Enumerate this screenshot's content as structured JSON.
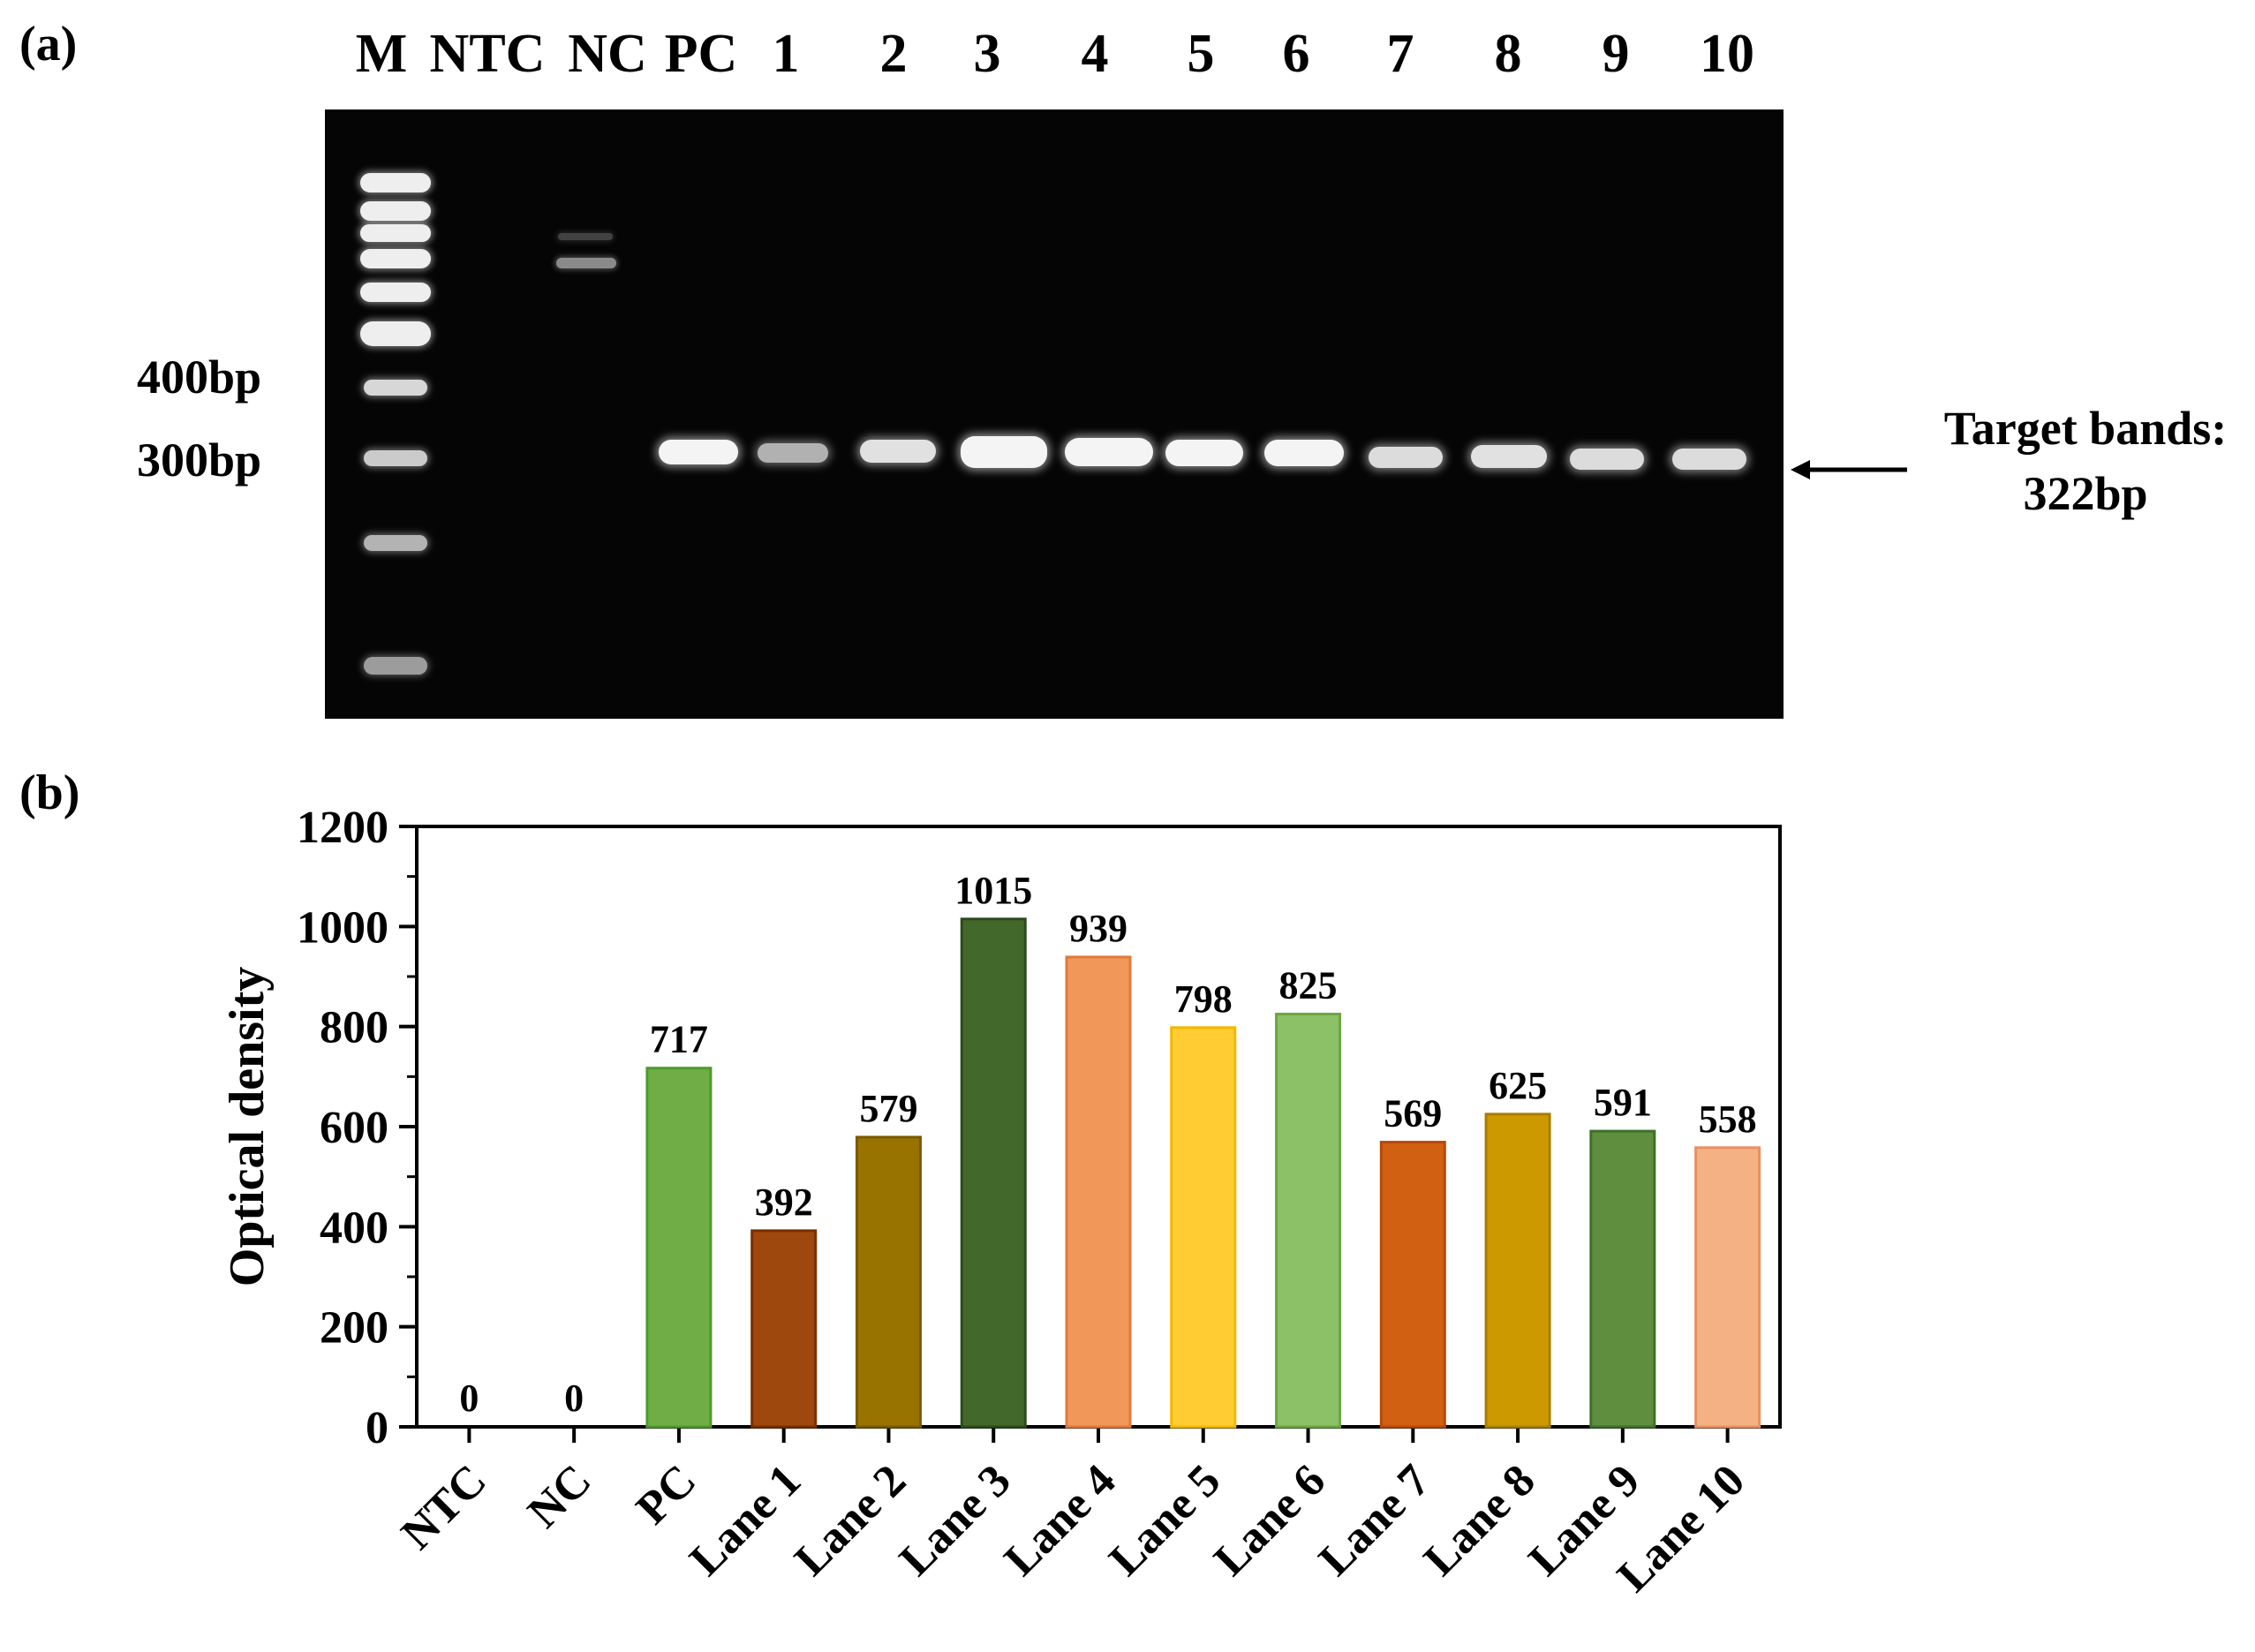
{
  "panel_a": {
    "label": "(a)",
    "lane_labels": [
      "M",
      "NTC",
      "NC",
      "PC",
      "1",
      "2",
      "3",
      "4",
      "5",
      "6",
      "7",
      "8",
      "9",
      "10"
    ],
    "size_markers": [
      "400bp",
      "300bp"
    ],
    "target_label_line1": "Target bands:",
    "target_label_line2": "322bp"
  },
  "panel_b": {
    "label": "(b)"
  },
  "chart_data": {
    "type": "bar",
    "categories": [
      "NTC",
      "NC",
      "PC",
      "Lane 1",
      "Lane 2",
      "Lane 3",
      "Lane 4",
      "Lane 5",
      "Lane 6",
      "Lane 7",
      "Lane 8",
      "Lane 9",
      "Lane 10"
    ],
    "values": [
      0,
      0,
      717,
      392,
      579,
      1015,
      939,
      798,
      825,
      569,
      625,
      591,
      558
    ],
    "value_labels": [
      "0",
      "0",
      "717",
      "392",
      "579",
      "1015",
      "939",
      "798",
      "825",
      "569",
      "625",
      "591",
      "558"
    ],
    "bar_colors": [
      "#ffffff",
      "#ffffff",
      "#70ad47",
      "#9e480e",
      "#997300",
      "#43682b",
      "#f1975a",
      "#ffcd33",
      "#8cc168",
      "#d26012",
      "#cc9a00",
      "#5e8e3e",
      "#f4b183"
    ],
    "bar_edge_colors": [
      "#ffffff",
      "#ffffff",
      "#4e9a2c",
      "#7a2e00",
      "#7a5a00",
      "#2d4a1c",
      "#e07a3a",
      "#f2b800",
      "#6aa840",
      "#b8480a",
      "#a87e00",
      "#3e7028",
      "#e89060"
    ],
    "title": "",
    "xlabel": "",
    "ylabel": "Optical density",
    "ylim": [
      0,
      1200
    ],
    "yticks": [
      "0",
      "200",
      "400",
      "600",
      "800",
      "1000",
      "1200"
    ],
    "grid": false,
    "legend": "none"
  }
}
